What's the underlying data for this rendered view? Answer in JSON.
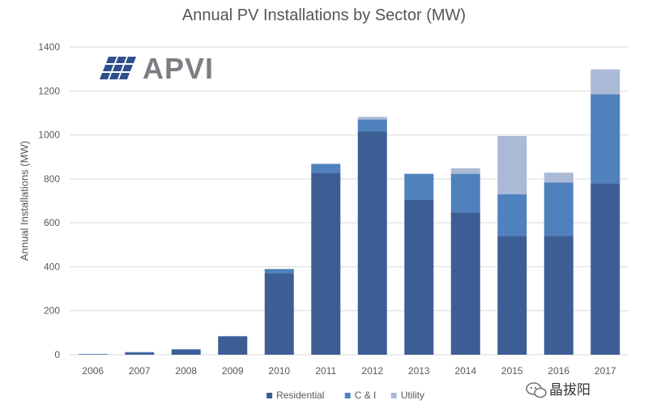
{
  "chart_data": {
    "type": "bar",
    "stacked": true,
    "title": "Annual PV Installations by Sector (MW)",
    "xlabel": "",
    "ylabel": "Annual Installations (MW)",
    "ylim": [
      0,
      1400
    ],
    "yticks": [
      0,
      200,
      400,
      600,
      800,
      1000,
      1200,
      1400
    ],
    "grid": true,
    "legend_position": "bottom",
    "categories": [
      "2006",
      "2007",
      "2008",
      "2009",
      "2010",
      "2011",
      "2012",
      "2013",
      "2014",
      "2015",
      "2016",
      "2017"
    ],
    "series": [
      {
        "name": "Residential",
        "color": "#3d5d95",
        "values": [
          2,
          10,
          22,
          82,
          370,
          828,
          1015,
          705,
          648,
          540,
          540,
          780
        ]
      },
      {
        "name": "C & I",
        "color": "#4f81bd",
        "values": [
          1,
          2,
          3,
          3,
          20,
          40,
          55,
          118,
          175,
          190,
          243,
          405
        ]
      },
      {
        "name": "Utility",
        "color": "#a9b9d6",
        "values": [
          0,
          0,
          0,
          0,
          0,
          0,
          12,
          0,
          25,
          265,
          45,
          113
        ]
      }
    ]
  },
  "logo": {
    "text": "APVI"
  },
  "watermark": {
    "text": "晶拔阳",
    "icon": "wechat-icon"
  }
}
